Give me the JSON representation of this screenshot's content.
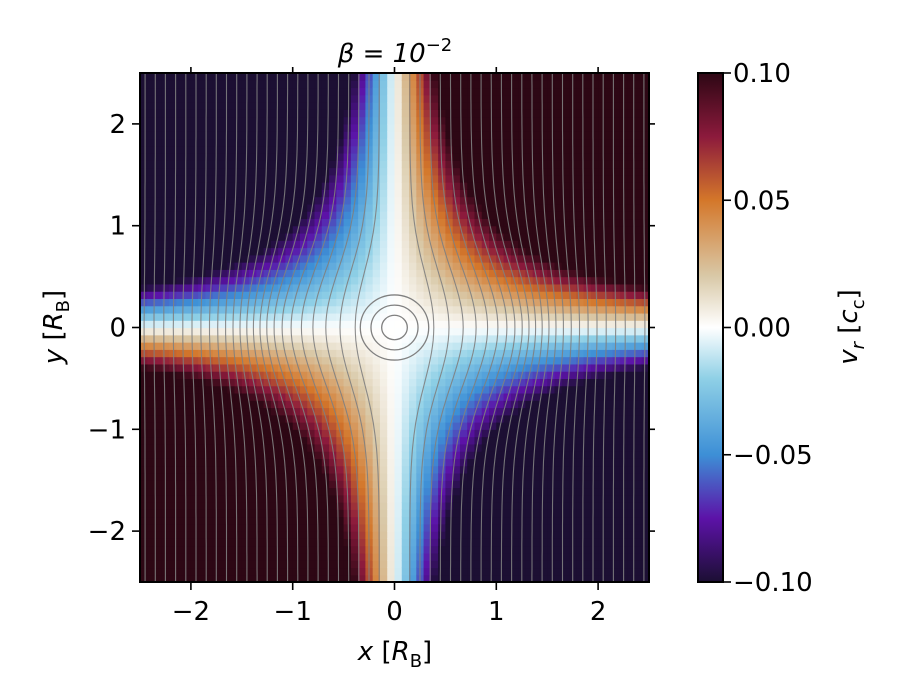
{
  "chart_data": {
    "type": "heatmap",
    "title": "β = 10⁻²",
    "title_parts": {
      "main": "β = 10",
      "sup": "−2"
    },
    "xlabel": "x [R_B]",
    "xlabel_parts": {
      "var": "x",
      "open": " [",
      "unit": "R",
      "sub": "B",
      "close": "]"
    },
    "ylabel": "y [R_B]",
    "ylabel_parts": {
      "var": "y",
      "open": " [",
      "unit": "R",
      "sub": "B",
      "close": "]"
    },
    "xlim": [
      -2.5,
      2.5
    ],
    "ylim": [
      -2.5,
      2.5
    ],
    "xticks": [
      -2,
      -1,
      0,
      1,
      2
    ],
    "yticks": [
      -2,
      -1,
      0,
      1,
      2
    ],
    "xtick_labels": [
      "−2",
      "−1",
      "0",
      "1",
      "2"
    ],
    "ytick_labels": [
      "−2",
      "−1",
      "0",
      "1",
      "2"
    ],
    "field": "v_r = k·x·y (saddle-shaped radial velocity, saturating at colour limits)",
    "field_gain": 0.1,
    "colorbar": {
      "label": "v_r [c_c]",
      "label_parts": {
        "var": "v",
        "sub1": "r",
        "open": " [",
        "unit": "c",
        "sub2": "c",
        "close": "]"
      },
      "range": [
        -0.1,
        0.1
      ],
      "ticks": [
        0.1,
        0.05,
        0.0,
        -0.05,
        -0.1
      ],
      "tick_labels": [
        "0.10",
        "0.05",
        "0.00",
        "−0.05",
        "−0.10"
      ],
      "colormap_stops": [
        "#1c0f33",
        "#5c12a8",
        "#3d8fd6",
        "#8fd0e6",
        "#ffffff",
        "#d9c9a8",
        "#d4772a",
        "#8c1a3c",
        "#2d0714"
      ]
    },
    "streamlines": {
      "color": "#808080",
      "description": "grey vertical streamlines bending around a central vortex at origin"
    }
  }
}
